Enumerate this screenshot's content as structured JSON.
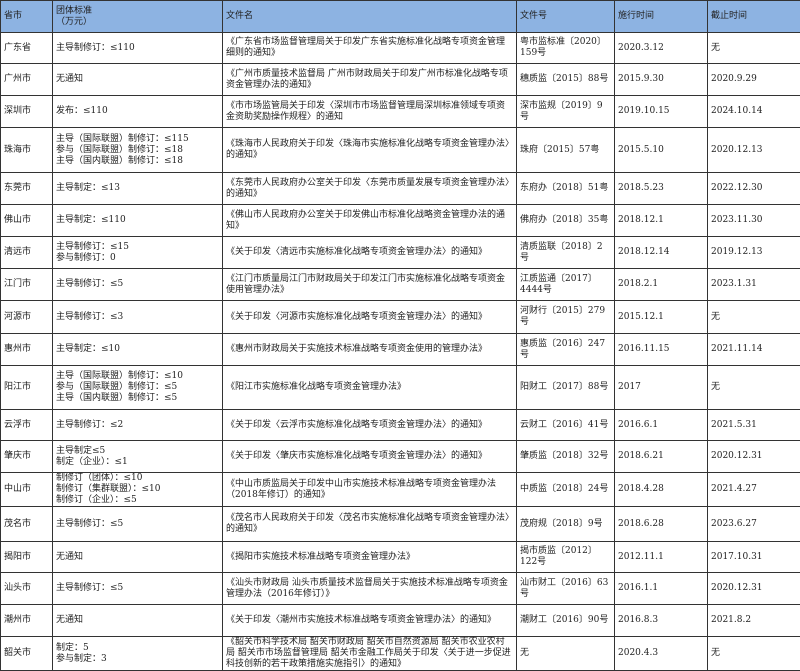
{
  "header": {
    "province": "省市",
    "standard": "团体标准\n（万元）",
    "doc_name": "文件名",
    "doc_no": "文件号",
    "start": "施行时间",
    "end": "截止时间",
    "bg_color": "#8db3e2"
  },
  "rows": [
    {
      "city": "广东省",
      "std": "主导制修订：≤110",
      "name": "《广东省市场监督管理局关于印发广东省实施标准化战略专项资金管理细则的通知》",
      "no": "粤市监标准〔2020〕159号",
      "start": "2020.3.12",
      "end": "无"
    },
    {
      "city": "广州市",
      "std": "无通知",
      "name": "《广州市质量技术监督局 广州市财政局关于印发广州市标准化战略专项资金管理办法的通知》",
      "no": "穗质监〔2015〕88号",
      "start": "2015.9.30",
      "end": "2020.9.29"
    },
    {
      "city": "深圳市",
      "std": "发布：≤110",
      "name": "《市市场监管局关于印发〈深圳市市场监督管理局深圳标准领域专项资金资助奖励操作规程〉的通知",
      "no": "深市监规〔2019〕9号",
      "start": "2019.10.15",
      "end": "2024.10.14"
    },
    {
      "city": "珠海市",
      "std": "主导（国际联盟）制修订：≤115\n参与（国际联盟）制修订：≤18\n主导（国内联盟）制修订：≤18",
      "name": "《珠海市人民政府关于印发〈珠海市实施标准化战略专项资金管理办法〉的通知》",
      "no": "珠府〔2015〕57粤",
      "start": "2015.5.10",
      "end": "2020.12.13"
    },
    {
      "city": "东莞市",
      "std": "主导制定：≤13",
      "name": "《东莞市人民政府办公室关于印发〈东莞市质量发展专项资金管理办法〉的通知》",
      "no": "东府办〔2018〕51粤",
      "start": "2018.5.23",
      "end": "2022.12.30"
    },
    {
      "city": "佛山市",
      "std": "主导制定：≤110",
      "name": "《佛山市人民政府办公室关于印发佛山市标准化战略资金管理办法的通知》",
      "no": "佛府办〔2018〕35粤",
      "start": "2018.12.1",
      "end": "2023.11.30"
    },
    {
      "city": "清远市",
      "std": "主导制修订：≤15\n参与制修订：0",
      "name": "《关于印发〈清远市实施标准化战略专项资金管理办法〉的通知》",
      "no": "清质监联〔2018〕2号",
      "start": "2018.12.14",
      "end": "2019.12.13"
    },
    {
      "city": "江门市",
      "std": "主导制修订：≤5",
      "name": "《江门市质量局江门市财政局关于印发江门市实施标准化战略专项资金使用管理办法》",
      "no": "江质监通〔2017〕4444号",
      "start": "2018.2.1",
      "end": "2023.1.31"
    },
    {
      "city": "河源市",
      "std": "主导制修订：≤3",
      "name": "《关于印发〈河源市实施标准化战略专项资金管理办法〉的通知》",
      "no": "河财行〔2015〕279号",
      "start": "2015.12.1",
      "end": "无"
    },
    {
      "city": "惠州市",
      "std": "主导制定：≤10",
      "name": "《惠州市财政局关于实施技术标准战略专项资金使用的管理办法》",
      "no": "惠质监〔2016〕247号",
      "start": "2016.11.15",
      "end": "2021.11.14"
    },
    {
      "city": "阳江市",
      "std": "主导（国际联盟）制修订：≤10\n参与（国际联盟）制修订：≤5\n主导（国内联盟）制修订：≤5",
      "name": "《阳江市实施标准化战略专项资金管理办法》",
      "no": "阳财工〔2017〕88号",
      "start": "2017",
      "end": "无"
    },
    {
      "city": "云浮市",
      "std": "主导制修订：≤2",
      "name": "《关于印发〈云浮市实施标准化战略专项资金管理办法〉的通知》",
      "no": "云财工〔2016〕41号",
      "start": "2016.6.1",
      "end": "2021.5.31"
    },
    {
      "city": "肇庆市",
      "std": "主导制定≤5\n制定（企业）：≤1",
      "name": "《关于印发〈肇庆市实施标准化战略专项资金管理办法〉的通知》",
      "no": "肇质监〔2018〕32号",
      "start": "2018.6.21",
      "end": "2020.12.31"
    },
    {
      "city": "中山市",
      "std": "制修订（团体）：≤10\n制修订（集群联盟）：≤10\n制修订（企业）：≤5",
      "name": "《中山市质监局关于印发中山市实施技术标准战略专项资金管理办法（2018年修订）的通知》",
      "no": "中质监〔2018〕24号",
      "start": "2018.4.28",
      "end": "2021.4.27"
    },
    {
      "city": "茂名市",
      "std": "主导制修订：≤5",
      "name": "《茂名市人民政府关于印发〈茂名市实施标准化战略专项资金管理办法〉的通知》",
      "no": "茂府规〔2018〕9号",
      "start": "2018.6.28",
      "end": "2023.6.27"
    },
    {
      "city": "揭阳市",
      "std": "无通知",
      "name": "《揭阳市实施技术标准战略专项资金管理办法》",
      "no": "揭市质监〔2012〕122号",
      "start": "2012.11.1",
      "end": "2017.10.31"
    },
    {
      "city": "汕头市",
      "std": "主导制修订：≤5",
      "name": "《汕头市财政局 汕头市质量技术监督局关于实施技术标准战略专项资金管理办法（2016年修订）》",
      "no": "汕市财工〔2016〕63号",
      "start": "2016.1.1",
      "end": "2020.12.31"
    },
    {
      "city": "潮州市",
      "std": "无通知",
      "name": "《关于印发〈潮州市实施技术标准战略专项资金管理办法〉的通知》",
      "no": "潮财工〔2016〕90号",
      "start": "2016.8.3",
      "end": "2021.8.2"
    },
    {
      "city": "韶关市",
      "std": "制定：5\n参与制定：3",
      "name": "《韶关市科学技术局 韶关市财政局 韶关市自然资源局 韶关市农业农村局 韶关市市场监督管理局 韶关市金融工作局关于印发〈关于进一步促进科技创新的若干政策措施实施指引〉的通知》",
      "no": "无",
      "start": "2020.4.3",
      "end": "无"
    }
  ]
}
